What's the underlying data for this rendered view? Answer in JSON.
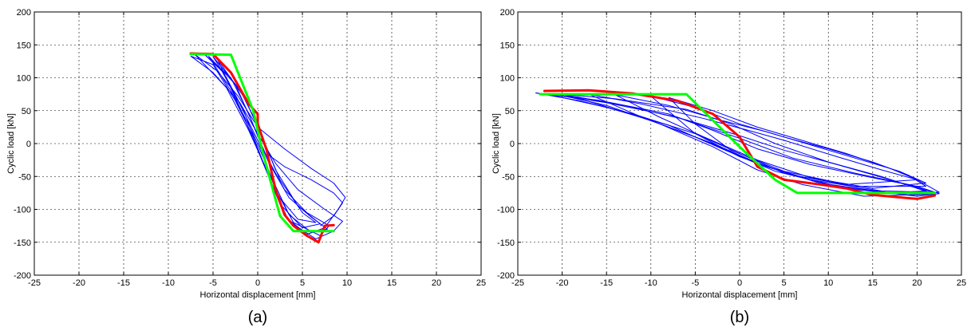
{
  "chart_data": [
    {
      "type": "line",
      "panel_label": "(a)",
      "xlabel": "Horizontal displacement [mm]",
      "ylabel": "Cyclic load [kN]",
      "xlim": [
        -25,
        25
      ],
      "ylim": [
        -200,
        200
      ],
      "xticks": [
        -25,
        -20,
        -15,
        -10,
        -5,
        0,
        5,
        10,
        15,
        20,
        25
      ],
      "yticks": [
        -200,
        -150,
        -100,
        -50,
        0,
        50,
        100,
        150,
        200
      ],
      "grid": true,
      "series": [
        {
          "color": "#0000ff",
          "width": 1,
          "loops": [
            [
              [
                -7.5,
                133
              ],
              [
                -5,
                108
              ],
              [
                -2,
                62
              ],
              [
                0,
                15
              ],
              [
                2,
                -30
              ],
              [
                4.5,
                -70
              ],
              [
                7.5,
                -100
              ],
              [
                9.5,
                -118
              ],
              [
                8.5,
                -133
              ],
              [
                6.5,
                -145
              ],
              [
                3.5,
                -118
              ],
              [
                1.5,
                -60
              ],
              [
                -0.5,
                10
              ],
              [
                -2.5,
                65
              ],
              [
                -5,
                120
              ],
              [
                -7.5,
                133
              ]
            ],
            [
              [
                -7,
                135
              ],
              [
                -4.5,
                110
              ],
              [
                -2.2,
                72
              ],
              [
                0,
                25
              ],
              [
                3,
                -8
              ],
              [
                6,
                -38
              ],
              [
                8.5,
                -60
              ],
              [
                9.8,
                -82
              ],
              [
                9,
                -100
              ],
              [
                7.5,
                -128
              ],
              [
                5.5,
                -138
              ],
              [
                3,
                -110
              ],
              [
                1,
                -40
              ],
              [
                -1,
                20
              ],
              [
                -3.5,
                85
              ],
              [
                -7,
                135
              ]
            ],
            [
              [
                -6,
                136
              ],
              [
                -3,
                100
              ],
              [
                -1,
                45
              ],
              [
                1,
                -20
              ],
              [
                3,
                -70
              ],
              [
                5.5,
                -105
              ],
              [
                8,
                -125
              ],
              [
                7,
                -140
              ],
              [
                4,
                -120
              ],
              [
                2,
                -70
              ],
              [
                0,
                5
              ],
              [
                -2,
                60
              ],
              [
                -4,
                110
              ],
              [
                -6,
                136
              ]
            ],
            [
              [
                -5.5,
                133
              ],
              [
                -2.5,
                90
              ],
              [
                -0.8,
                38
              ],
              [
                1.2,
                -28
              ],
              [
                3.5,
                -82
              ],
              [
                6,
                -112
              ],
              [
                7.8,
                -130
              ],
              [
                6,
                -135
              ],
              [
                3.5,
                -108
              ],
              [
                1.5,
                -50
              ],
              [
                -0.5,
                15
              ],
              [
                -3,
                80
              ],
              [
                -5.5,
                133
              ]
            ],
            [
              [
                -5,
                132
              ],
              [
                -2,
                82
              ],
              [
                0,
                28
              ],
              [
                2,
                -40
              ],
              [
                4.5,
                -95
              ],
              [
                7,
                -122
              ],
              [
                5,
                -128
              ],
              [
                2.5,
                -92
              ],
              [
                0.5,
                -25
              ],
              [
                -1.5,
                48
              ],
              [
                -3.5,
                100
              ],
              [
                -5,
                132
              ]
            ],
            [
              [
                -4.5,
                128
              ],
              [
                -1.5,
                70
              ],
              [
                0.5,
                10
              ],
              [
                2.5,
                -55
              ],
              [
                5,
                -105
              ],
              [
                6.5,
                -120
              ],
              [
                4.5,
                -115
              ],
              [
                2,
                -75
              ],
              [
                0,
                -10
              ],
              [
                -2,
                55
              ],
              [
                -4.5,
                128
              ]
            ],
            [
              [
                1,
                -15
              ],
              [
                3,
                -35
              ],
              [
                6,
                -55
              ],
              [
                8.5,
                -75
              ],
              [
                9.5,
                -90
              ],
              [
                8.5,
                -110
              ],
              [
                7,
                -125
              ]
            ]
          ]
        },
        {
          "color": "#ff0000",
          "width": 3,
          "points": [
            [
              -7.5,
              137
            ],
            [
              -5,
              136
            ],
            [
              -3,
              108
            ],
            [
              -1,
              60
            ],
            [
              0,
              45
            ],
            [
              0,
              30
            ],
            [
              1,
              -10
            ],
            [
              2,
              -70
            ],
            [
              3,
              -108
            ],
            [
              4,
              -125
            ],
            [
              5.5,
              -140
            ],
            [
              6.8,
              -150
            ],
            [
              7.5,
              -125
            ],
            [
              8.5,
              -124
            ]
          ]
        },
        {
          "color": "#00ff00",
          "width": 3,
          "points": [
            [
              -7.5,
              136
            ],
            [
              -3,
              135
            ],
            [
              -0.5,
              50
            ],
            [
              0.5,
              -10
            ],
            [
              2.5,
              -110
            ],
            [
              4,
              -133
            ],
            [
              8.5,
              -133
            ]
          ]
        }
      ]
    },
    {
      "type": "line",
      "panel_label": "(b)",
      "xlabel": "Horizontal displacement [mm]",
      "ylabel": "Cyclic load [kN]",
      "xlim": [
        -25,
        25
      ],
      "ylim": [
        -200,
        200
      ],
      "xticks": [
        -25,
        -20,
        -15,
        -10,
        -5,
        0,
        5,
        10,
        15,
        20,
        25
      ],
      "yticks": [
        -200,
        -150,
        -100,
        -50,
        0,
        50,
        100,
        150,
        200
      ],
      "grid": true,
      "series": [
        {
          "color": "#0000ff",
          "width": 1,
          "loops": [
            [
              [
                -23,
                77
              ],
              [
                -16,
                66
              ],
              [
                -8,
                45
              ],
              [
                -3,
                20
              ],
              [
                2,
                -8
              ],
              [
                8,
                -32
              ],
              [
                15,
                -52
              ],
              [
                20,
                -65
              ],
              [
                22.5,
                -76
              ],
              [
                20,
                -80
              ],
              [
                12,
                -68
              ],
              [
                5,
                -45
              ],
              [
                0,
                -15
              ],
              [
                -5,
                15
              ],
              [
                -12,
                45
              ],
              [
                -18,
                65
              ],
              [
                -23,
                77
              ]
            ],
            [
              [
                -22,
                76
              ],
              [
                -15,
                62
              ],
              [
                -7,
                40
              ],
              [
                0,
                8
              ],
              [
                6,
                -22
              ],
              [
                13,
                -45
              ],
              [
                19,
                -62
              ],
              [
                22,
                -75
              ],
              [
                19,
                -78
              ],
              [
                11,
                -65
              ],
              [
                4,
                -42
              ],
              [
                -2,
                -8
              ],
              [
                -8,
                28
              ],
              [
                -15,
                55
              ],
              [
                -22,
                76
              ]
            ],
            [
              [
                -20,
                75
              ],
              [
                -13,
                58
              ],
              [
                -6,
                36
              ],
              [
                0,
                12
              ],
              [
                5,
                -10
              ],
              [
                11,
                -32
              ],
              [
                17,
                -55
              ],
              [
                21,
                -72
              ],
              [
                17,
                -75
              ],
              [
                9,
                -60
              ],
              [
                3,
                -35
              ],
              [
                -3,
                0
              ],
              [
                -10,
                35
              ],
              [
                -16,
                60
              ],
              [
                -20,
                75
              ]
            ],
            [
              [
                -17,
                75
              ],
              [
                -11,
                60
              ],
              [
                -4,
                38
              ],
              [
                1,
                20
              ],
              [
                5,
                5
              ],
              [
                11,
                -20
              ],
              [
                16,
                -40
              ],
              [
                20,
                -55
              ],
              [
                22.5,
                -74
              ],
              [
                16,
                -72
              ],
              [
                8,
                -55
              ],
              [
                2,
                -30
              ],
              [
                -4,
                5
              ],
              [
                -11,
                40
              ],
              [
                -17,
                75
              ]
            ],
            [
              [
                -14,
                74
              ],
              [
                -8,
                58
              ],
              [
                -2,
                35
              ],
              [
                3,
                18
              ],
              [
                8,
                -2
              ],
              [
                13,
                -22
              ],
              [
                18,
                -42
              ],
              [
                21,
                -60
              ],
              [
                15,
                -68
              ],
              [
                8,
                -52
              ],
              [
                2,
                -25
              ],
              [
                -4,
                10
              ],
              [
                -9,
                40
              ],
              [
                -14,
                74
              ]
            ],
            [
              [
                -10,
                72
              ],
              [
                -5,
                55
              ],
              [
                0,
                30
              ],
              [
                5,
                10
              ],
              [
                10,
                -8
              ],
              [
                15,
                -28
              ],
              [
                19,
                -48
              ],
              [
                21,
                -65
              ],
              [
                13,
                -65
              ],
              [
                6,
                -48
              ],
              [
                0,
                -20
              ],
              [
                -5,
                15
              ],
              [
                -10,
                72
              ]
            ],
            [
              [
                -8,
                70
              ],
              [
                -3,
                50
              ],
              [
                2,
                25
              ],
              [
                7,
                5
              ],
              [
                12,
                -15
              ],
              [
                17,
                -38
              ],
              [
                20,
                -55
              ],
              [
                12,
                -62
              ],
              [
                5,
                -42
              ],
              [
                -1,
                -10
              ],
              [
                -5,
                30
              ],
              [
                -8,
                70
              ]
            ],
            [
              [
                -21,
                76
              ],
              [
                -14,
                68
              ],
              [
                -6,
                52
              ],
              [
                -1,
                30
              ],
              [
                4,
                0
              ],
              [
                10,
                -28
              ],
              [
                16,
                -50
              ],
              [
                20,
                -68
              ],
              [
                22,
                -77
              ],
              [
                14,
                -80
              ],
              [
                7,
                -62
              ],
              [
                2,
                -40
              ],
              [
                -3,
                -5
              ],
              [
                -9,
                30
              ],
              [
                -15,
                58
              ],
              [
                -21,
                76
              ]
            ]
          ]
        },
        {
          "color": "#ff0000",
          "width": 3,
          "points": [
            [
              -22,
              80
            ],
            [
              -17,
              81
            ],
            [
              -12,
              76
            ],
            [
              -7,
              65
            ],
            [
              -3,
              45
            ],
            [
              0,
              10
            ],
            [
              2,
              -35
            ],
            [
              5,
              -55
            ],
            [
              9,
              -62
            ],
            [
              12,
              -68
            ],
            [
              15,
              -78
            ],
            [
              20,
              -84
            ],
            [
              22,
              -79
            ]
          ]
        },
        {
          "color": "#00ff00",
          "width": 3,
          "points": [
            [
              -22.5,
              75
            ],
            [
              -6,
              75
            ],
            [
              0,
              -5
            ],
            [
              4,
              -55
            ],
            [
              6.5,
              -75
            ],
            [
              22,
              -75
            ]
          ]
        }
      ]
    }
  ]
}
